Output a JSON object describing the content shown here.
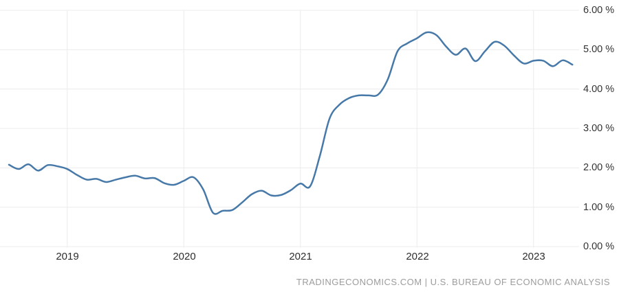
{
  "chart": {
    "y_axis_labels": [
      "6.00 %",
      "5.00 %",
      "4.00 %",
      "3.00 %",
      "2.00 %",
      "1.00 %",
      "0.00 %"
    ],
    "x_axis_labels": [
      "2019",
      "2020",
      "2021",
      "2022",
      "2023"
    ],
    "footer": "TRADINGECONOMICS.COM | U.S. BUREAU OF ECONOMIC ANALYSIS",
    "colors": {
      "line": "#4678a8",
      "grid": "#ececec",
      "axis_text": "#333333",
      "footer_text": "#9c9c9c"
    }
  },
  "chart_data": {
    "type": "line",
    "title": "",
    "xlabel": "",
    "ylabel": "",
    "unit": "%",
    "ylim": [
      0,
      6
    ],
    "y_ticks": [
      6,
      5,
      4,
      3,
      2,
      1,
      0
    ],
    "x_ticks": [
      "2019",
      "2020",
      "2021",
      "2022",
      "2023"
    ],
    "grid": true,
    "legend_position": "none",
    "source": "TRADINGECONOMICS.COM | U.S. BUREAU OF ECONOMIC ANALYSIS",
    "x": [
      "2018-07",
      "2018-08",
      "2018-09",
      "2018-10",
      "2018-11",
      "2018-12",
      "2019-01",
      "2019-02",
      "2019-03",
      "2019-04",
      "2019-05",
      "2019-06",
      "2019-07",
      "2019-08",
      "2019-09",
      "2019-10",
      "2019-11",
      "2019-12",
      "2020-01",
      "2020-02",
      "2020-03",
      "2020-04",
      "2020-05",
      "2020-06",
      "2020-07",
      "2020-08",
      "2020-09",
      "2020-10",
      "2020-11",
      "2020-12",
      "2021-01",
      "2021-02",
      "2021-03",
      "2021-04",
      "2021-05",
      "2021-06",
      "2021-07",
      "2021-08",
      "2021-09",
      "2021-10",
      "2021-11",
      "2021-12",
      "2022-01",
      "2022-02",
      "2022-03",
      "2022-04",
      "2022-05",
      "2022-06",
      "2022-07",
      "2022-08",
      "2022-09",
      "2022-10",
      "2022-11",
      "2022-12",
      "2023-01",
      "2023-02",
      "2023-03",
      "2023-04",
      "2023-05"
    ],
    "values": [
      2.08,
      1.97,
      2.09,
      1.93,
      2.07,
      2.04,
      1.97,
      1.82,
      1.7,
      1.72,
      1.64,
      1.7,
      1.76,
      1.8,
      1.73,
      1.74,
      1.61,
      1.57,
      1.67,
      1.76,
      1.45,
      0.86,
      0.91,
      0.93,
      1.12,
      1.33,
      1.42,
      1.3,
      1.31,
      1.43,
      1.6,
      1.53,
      2.3,
      3.25,
      3.6,
      3.77,
      3.84,
      3.84,
      3.86,
      4.25,
      4.96,
      5.16,
      5.29,
      5.44,
      5.37,
      5.08,
      4.87,
      5.03,
      4.71,
      4.96,
      5.2,
      5.1,
      4.85,
      4.65,
      4.72,
      4.72,
      4.58,
      4.73,
      4.62
    ]
  }
}
